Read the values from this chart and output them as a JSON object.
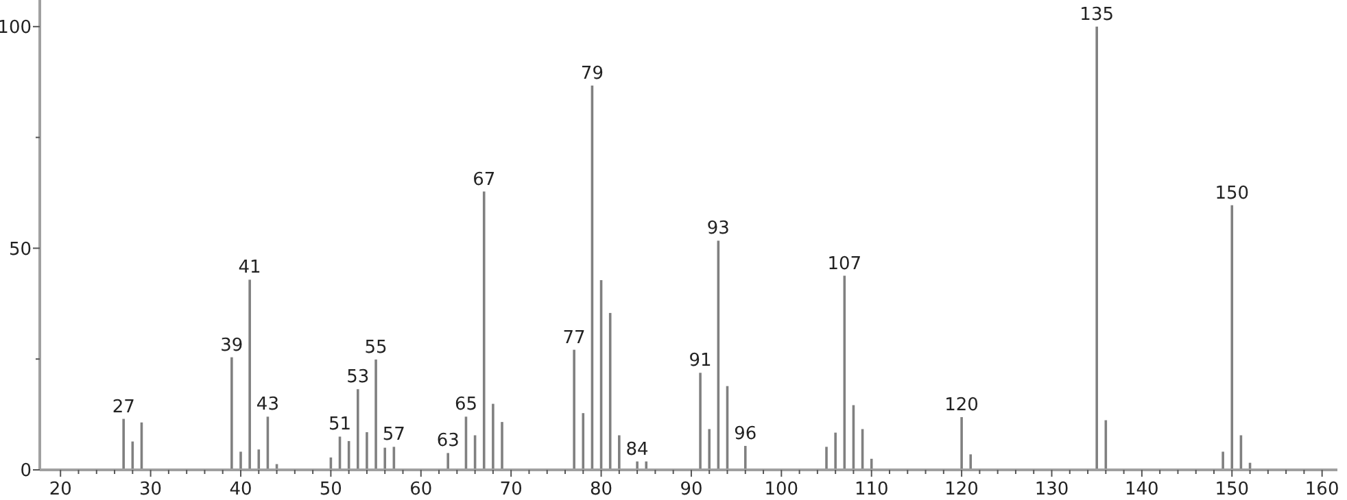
{
  "chart_data": {
    "type": "bar",
    "color": "#808080",
    "x": [
      27,
      28,
      29,
      39,
      40,
      41,
      42,
      43,
      44,
      50,
      51,
      52,
      53,
      54,
      55,
      56,
      57,
      63,
      65,
      66,
      67,
      68,
      69,
      77,
      78,
      79,
      80,
      81,
      82,
      84,
      85,
      91,
      92,
      93,
      94,
      96,
      105,
      106,
      107,
      108,
      109,
      110,
      120,
      121,
      135,
      136,
      149,
      150,
      151,
      152
    ],
    "values": [
      11.5,
      6.4,
      10.7,
      25.4,
      4.1,
      42.9,
      4.6,
      12.0,
      1.3,
      2.8,
      7.5,
      6.5,
      18.2,
      8.5,
      24.9,
      5.0,
      5.2,
      3.8,
      12.0,
      7.8,
      62.8,
      14.9,
      10.8,
      27.1,
      12.8,
      86.7,
      42.8,
      35.4,
      7.8,
      1.9,
      1.9,
      21.9,
      9.2,
      51.7,
      18.9,
      5.4,
      5.2,
      8.4,
      43.8,
      14.6,
      9.2,
      2.5,
      11.9,
      3.5,
      100,
      11.2,
      4.1,
      59.7,
      7.8,
      1.6
    ],
    "xlim": [
      17.7,
      161.7
    ],
    "ylim": [
      0,
      106
    ],
    "xticks": [
      20,
      {
        "value": 22,
        "label": null
      },
      {
        "value": 24,
        "label": null
      },
      {
        "value": 26,
        "label": null
      },
      {
        "value": 28,
        "label": null
      },
      30,
      {
        "value": 32,
        "label": null
      },
      {
        "value": 34,
        "label": null
      },
      {
        "value": 36,
        "label": null
      },
      {
        "value": 38,
        "label": null
      },
      40,
      {
        "value": 42,
        "label": null
      },
      {
        "value": 44,
        "label": null
      },
      {
        "value": 46,
        "label": null
      },
      {
        "value": 48,
        "label": null
      },
      50,
      {
        "value": 52,
        "label": null
      },
      {
        "value": 54,
        "label": null
      },
      {
        "value": 56,
        "label": null
      },
      {
        "value": 58,
        "label": null
      },
      60,
      {
        "value": 62,
        "label": null
      },
      {
        "value": 64,
        "label": null
      },
      {
        "value": 66,
        "label": null
      },
      {
        "value": 68,
        "label": null
      },
      70,
      {
        "value": 72,
        "label": null
      },
      {
        "value": 74,
        "label": null
      },
      {
        "value": 76,
        "label": null
      },
      {
        "value": 78,
        "label": null
      },
      80,
      {
        "value": 82,
        "label": null
      },
      {
        "value": 84,
        "label": null
      },
      {
        "value": 86,
        "label": null
      },
      {
        "value": 88,
        "label": null
      },
      90,
      {
        "value": 92,
        "label": null
      },
      {
        "value": 94,
        "label": null
      },
      {
        "value": 96,
        "label": null
      },
      {
        "value": 98,
        "label": null
      },
      100,
      {
        "value": 102,
        "label": null
      },
      {
        "value": 104,
        "label": null
      },
      {
        "value": 106,
        "label": null
      },
      {
        "value": 108,
        "label": null
      },
      110,
      {
        "value": 112,
        "label": null
      },
      {
        "value": 114,
        "label": null
      },
      {
        "value": 116,
        "label": null
      },
      {
        "value": 118,
        "label": null
      },
      120,
      {
        "value": 122,
        "label": null
      },
      {
        "value": 124,
        "label": null
      },
      {
        "value": 126,
        "label": null
      },
      {
        "value": 128,
        "label": null
      },
      130,
      {
        "value": 132,
        "label": null
      },
      {
        "value": 134,
        "label": null
      },
      {
        "value": 136,
        "label": null
      },
      {
        "value": 138,
        "label": null
      },
      140,
      {
        "value": 142,
        "label": null
      },
      {
        "value": 144,
        "label": null
      },
      {
        "value": 146,
        "label": null
      },
      {
        "value": 148,
        "label": null
      },
      150,
      {
        "value": 152,
        "label": null
      },
      {
        "value": 154,
        "label": null
      },
      {
        "value": 156,
        "label": null
      },
      {
        "value": 158,
        "label": null
      },
      160
    ],
    "yticks": [
      0,
      {
        "value": 25,
        "label": null
      },
      50,
      {
        "value": 75,
        "label": null
      },
      100
    ],
    "annotations": [
      {
        "text": "27",
        "x": 27,
        "y": 11.5
      },
      {
        "text": "39",
        "x": 39,
        "y": 25.4
      },
      {
        "text": "41",
        "x": 41,
        "y": 42.9
      },
      {
        "text": "43",
        "x": 43,
        "y": 12.0
      },
      {
        "text": "51",
        "x": 51,
        "y": 7.5
      },
      {
        "text": "53",
        "x": 53,
        "y": 18.2
      },
      {
        "text": "55",
        "x": 55,
        "y": 24.9
      },
      {
        "text": "57",
        "x": 57,
        "y": 5.2
      },
      {
        "text": "63",
        "x": 63,
        "y": 3.8
      },
      {
        "text": "65",
        "x": 65,
        "y": 12.0
      },
      {
        "text": "67",
        "x": 67,
        "y": 62.8
      },
      {
        "text": "77",
        "x": 77,
        "y": 27.1
      },
      {
        "text": "79",
        "x": 79,
        "y": 86.7
      },
      {
        "text": "84",
        "x": 84,
        "y": 1.9
      },
      {
        "text": "91",
        "x": 91,
        "y": 21.9
      },
      {
        "text": "93",
        "x": 93,
        "y": 51.7
      },
      {
        "text": "96",
        "x": 96,
        "y": 5.4
      },
      {
        "text": "107",
        "x": 107,
        "y": 43.8
      },
      {
        "text": "120",
        "x": 120,
        "y": 11.9
      },
      {
        "text": "135",
        "x": 135,
        "y": 100
      },
      {
        "text": "150",
        "x": 150,
        "y": 59.7
      }
    ]
  }
}
